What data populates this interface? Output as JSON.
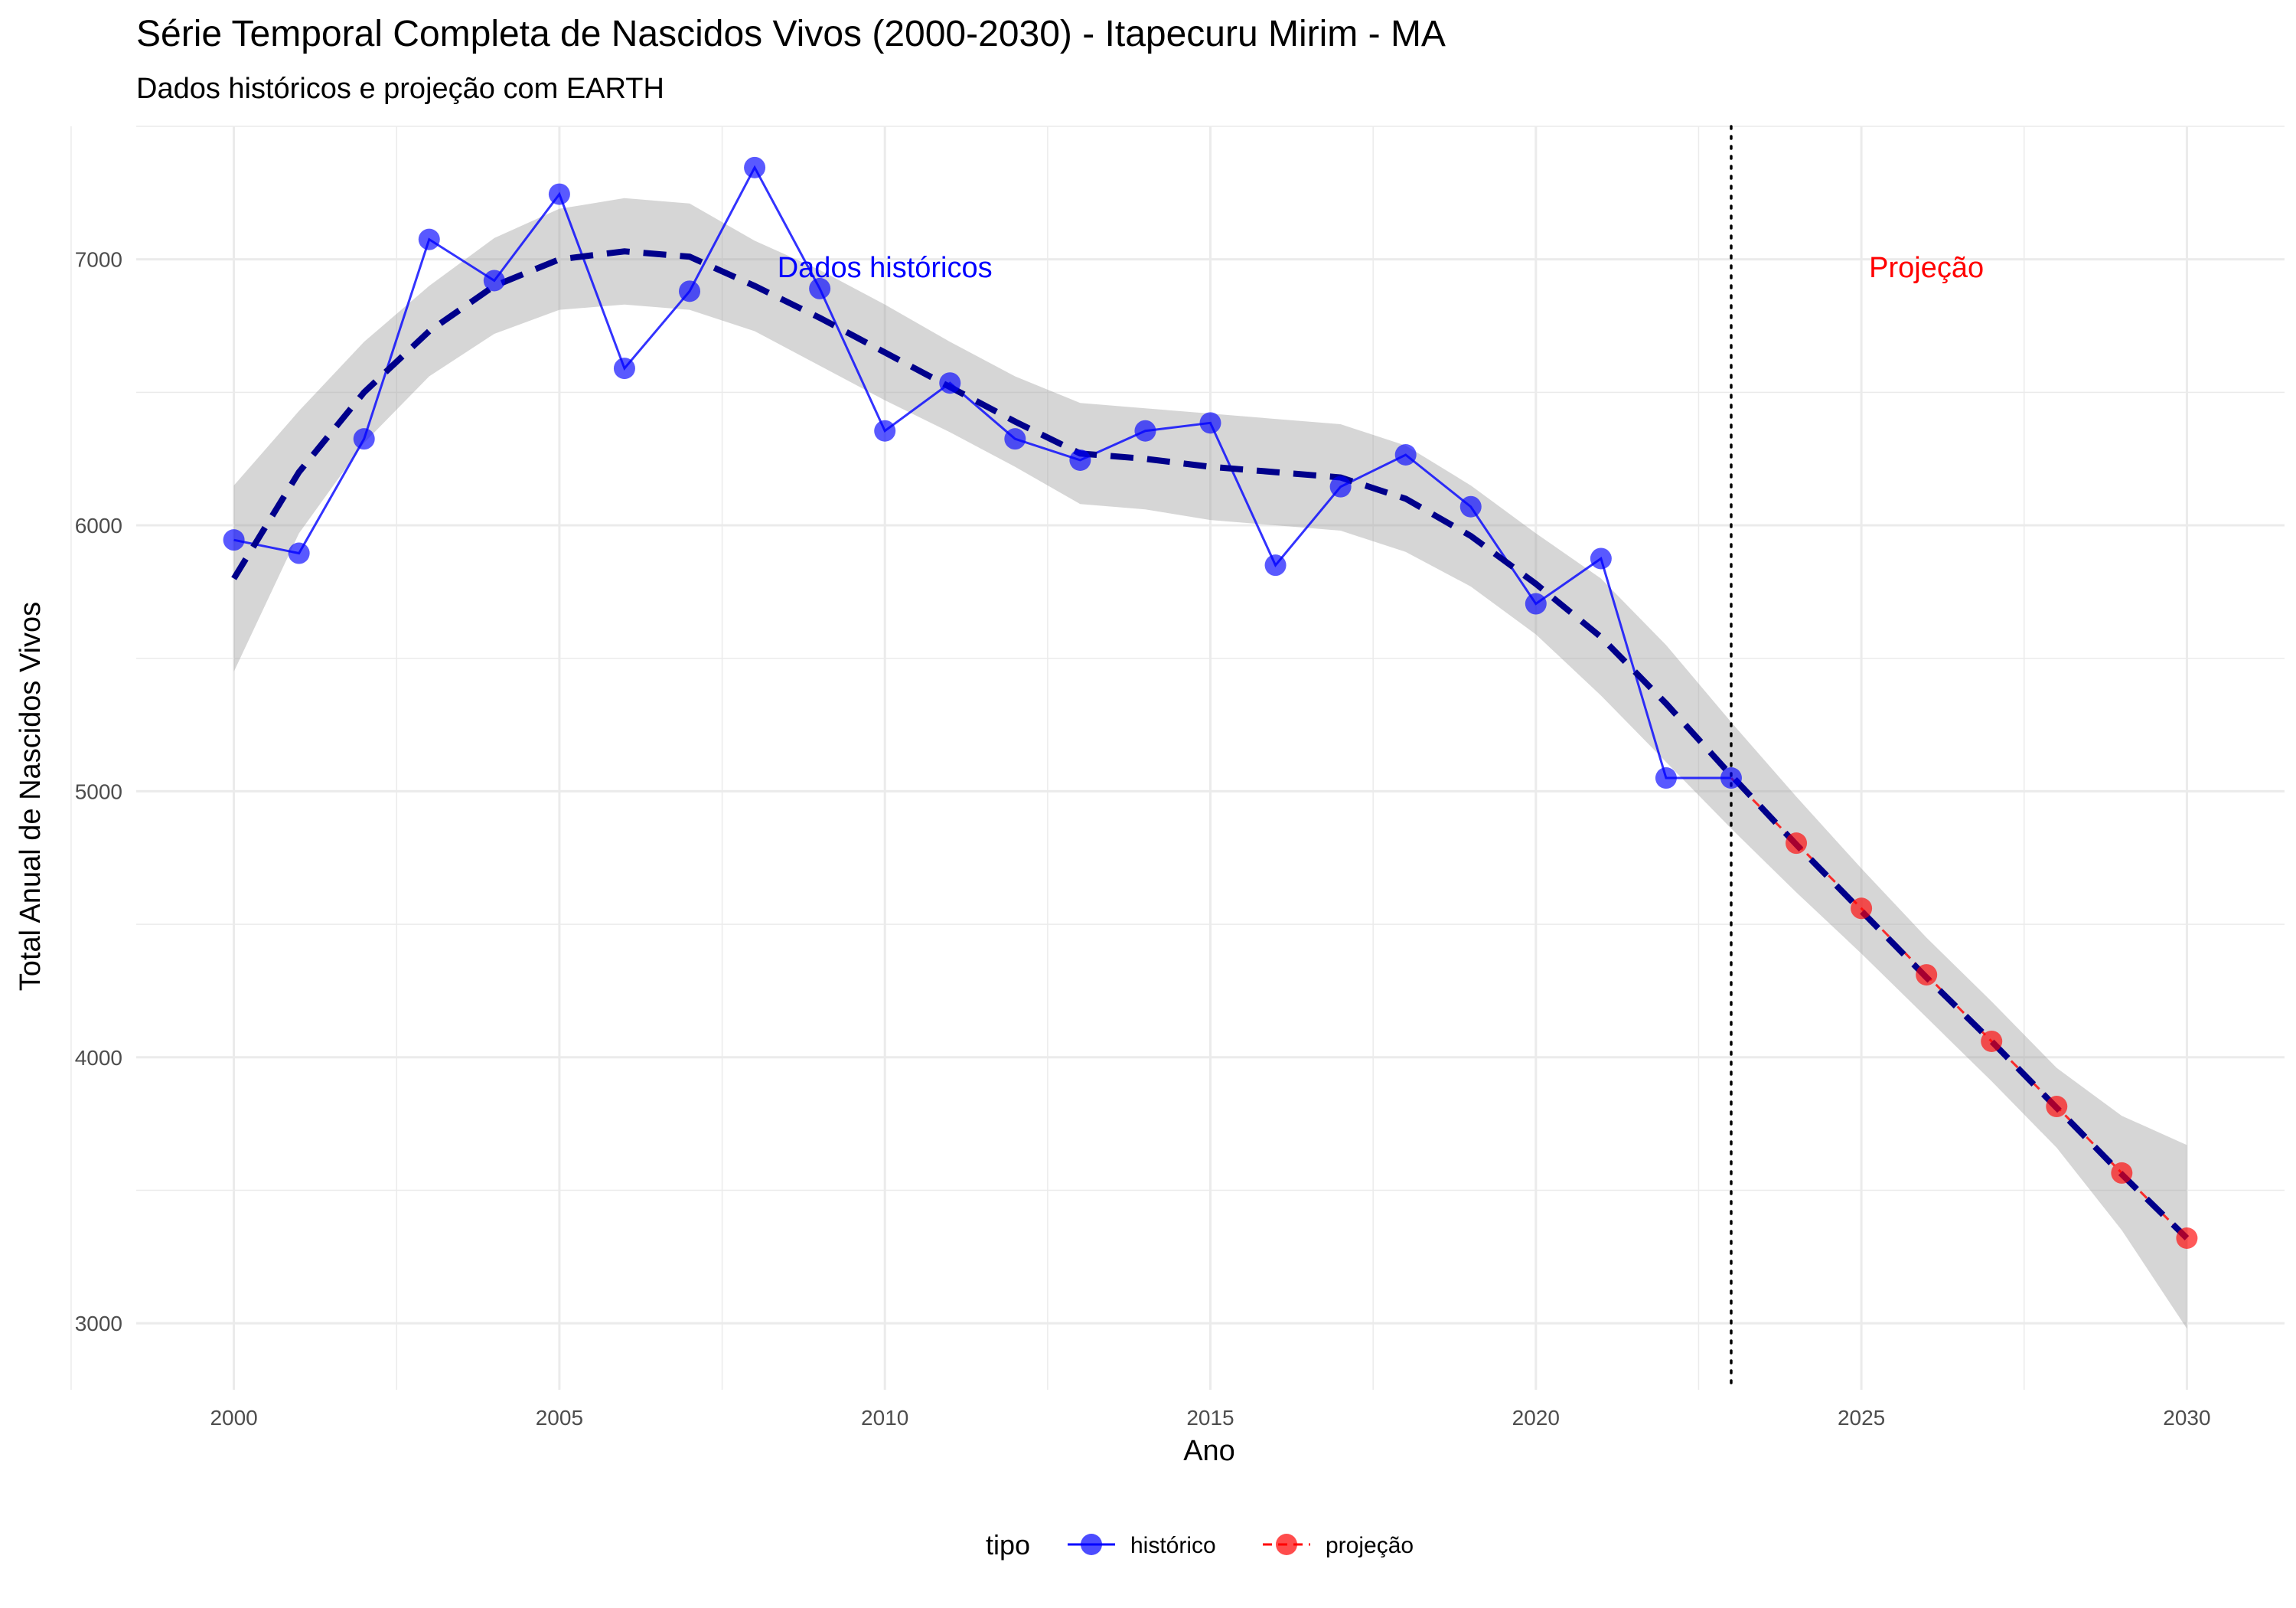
{
  "chart_data": {
    "type": "line",
    "title": "Série Temporal Completa de Nascidos Vivos (2000-2030) -  Itapecuru Mirim - MA",
    "subtitle": "Dados históricos e projeção com EARTH",
    "xlabel": "Ano",
    "ylabel": "Total Anual de Nascidos Vivos",
    "xlim": [
      1998.5,
      2031.5
    ],
    "ylim": [
      2750,
      7500
    ],
    "x_ticks": [
      2000,
      2005,
      2010,
      2015,
      2020,
      2025,
      2030
    ],
    "y_ticks": [
      3000,
      4000,
      5000,
      6000,
      7000
    ],
    "grid": true,
    "divider_x": 2023,
    "annotations": [
      {
        "text": "Dados históricos",
        "x": 2010,
        "y": 6970,
        "color": "#0000ff"
      },
      {
        "text": "Projeção",
        "x": 2026,
        "y": 6970,
        "color": "#ff0000"
      }
    ],
    "series": [
      {
        "name": "histórico",
        "color": "#0000ff",
        "x": [
          2000,
          2001,
          2002,
          2003,
          2004,
          2005,
          2006,
          2007,
          2008,
          2009,
          2010,
          2011,
          2012,
          2013,
          2014,
          2015,
          2016,
          2017,
          2018,
          2019,
          2020,
          2021,
          2022,
          2023
        ],
        "y": [
          5945,
          5895,
          6325,
          7075,
          6920,
          7245,
          6590,
          6880,
          7345,
          6890,
          6355,
          6535,
          6325,
          6245,
          6355,
          6385,
          5850,
          6145,
          6265,
          6070,
          5705,
          5875,
          5050,
          5050
        ]
      },
      {
        "name": "projeção",
        "color": "#ff0000",
        "x": [
          2023,
          2024,
          2025,
          2026,
          2027,
          2028,
          2029,
          2030
        ],
        "y": [
          5050,
          4805,
          4560,
          4310,
          4060,
          3815,
          3565,
          3320
        ]
      }
    ],
    "smooth": {
      "x": [
        2000,
        2001,
        2002,
        2003,
        2004,
        2005,
        2006,
        2007,
        2008,
        2009,
        2010,
        2011,
        2012,
        2013,
        2014,
        2015,
        2016,
        2017,
        2018,
        2019,
        2020,
        2021,
        2022,
        2023,
        2024,
        2025,
        2026,
        2027,
        2028,
        2029,
        2030
      ],
      "y": [
        5800,
        6200,
        6500,
        6730,
        6900,
        7000,
        7030,
        7010,
        6900,
        6780,
        6650,
        6520,
        6390,
        6270,
        6250,
        6220,
        6200,
        6180,
        6100,
        5960,
        5780,
        5580,
        5330,
        5060,
        4800,
        4550,
        4300,
        4060,
        3810,
        3560,
        3320
      ],
      "lower": [
        5450,
        5970,
        6310,
        6560,
        6720,
        6810,
        6830,
        6810,
        6730,
        6600,
        6470,
        6350,
        6220,
        6080,
        6060,
        6020,
        6000,
        5980,
        5900,
        5770,
        5590,
        5360,
        5110,
        4860,
        4620,
        4390,
        4150,
        3910,
        3660,
        3350,
        2980
      ],
      "upper": [
        6150,
        6430,
        6690,
        6900,
        7080,
        7190,
        7230,
        7210,
        7070,
        6960,
        6830,
        6690,
        6560,
        6460,
        6440,
        6420,
        6400,
        6380,
        6300,
        6150,
        5970,
        5800,
        5550,
        5260,
        4980,
        4710,
        4450,
        4210,
        3960,
        3780,
        3670
      ]
    },
    "legend": {
      "title": "tipo",
      "position": "bottom",
      "entries": [
        {
          "label": "histórico",
          "color": "#0000ff"
        },
        {
          "label": "projeção",
          "color": "#ff0000"
        }
      ]
    }
  }
}
